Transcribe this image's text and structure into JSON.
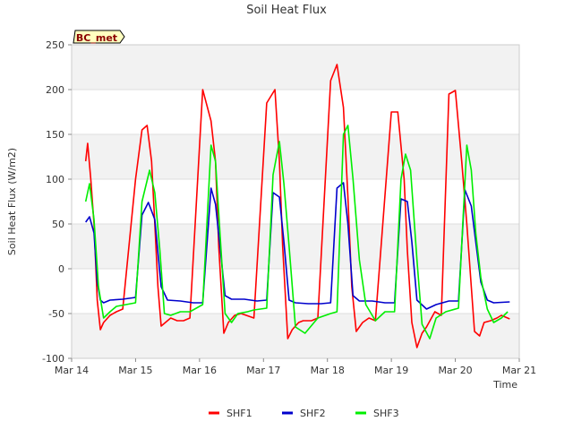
{
  "chart_data": {
    "type": "line",
    "title": "Soil Heat Flux",
    "xlabel": "Time",
    "ylabel": "Soil Heat Flux (W/m2)",
    "badge": "BC_met",
    "ylim": [
      -100,
      250
    ],
    "yticks": [
      -100,
      -50,
      0,
      50,
      100,
      150,
      200,
      250
    ],
    "xlim": [
      0,
      7
    ],
    "xticks": [
      {
        "v": 0,
        "label": "Mar 14"
      },
      {
        "v": 1,
        "label": "Mar 15"
      },
      {
        "v": 2,
        "label": "Mar 16"
      },
      {
        "v": 3,
        "label": "Mar 17"
      },
      {
        "v": 4,
        "label": "Mar 18"
      },
      {
        "v": 5,
        "label": "Mar 19"
      },
      {
        "v": 6,
        "label": "Mar 20"
      },
      {
        "v": 7,
        "label": "Mar 21"
      }
    ],
    "grid": "horizontal bands",
    "legend_position": "bottom",
    "series": [
      {
        "name": "SHF1",
        "color": "#ff0000",
        "x": [
          0.22,
          0.25,
          0.3,
          0.35,
          0.4,
          0.45,
          0.5,
          0.6,
          0.7,
          0.8,
          1.0,
          1.1,
          1.18,
          1.25,
          1.3,
          1.35,
          1.4,
          1.5,
          1.55,
          1.65,
          1.75,
          1.85,
          2.05,
          2.18,
          2.25,
          2.3,
          2.38,
          2.45,
          2.55,
          2.65,
          2.85,
          3.05,
          3.18,
          3.25,
          3.3,
          3.38,
          3.45,
          3.55,
          3.62,
          3.75,
          3.85,
          4.05,
          4.15,
          4.25,
          4.32,
          4.38,
          4.45,
          4.55,
          4.65,
          4.75,
          5.0,
          5.1,
          5.2,
          5.25,
          5.32,
          5.4,
          5.48,
          5.55,
          5.68,
          5.78,
          5.9,
          6.0,
          6.1,
          6.18,
          6.25,
          6.3,
          6.38,
          6.45,
          6.55,
          6.65,
          6.72,
          6.85
        ],
        "y": [
          120,
          140,
          100,
          50,
          -35,
          -68,
          -60,
          -52,
          -48,
          -45,
          100,
          155,
          160,
          120,
          50,
          -20,
          -64,
          -58,
          -55,
          -58,
          -58,
          -55,
          200,
          165,
          120,
          25,
          -72,
          -60,
          -52,
          -50,
          -55,
          185,
          200,
          120,
          25,
          -78,
          -68,
          -60,
          -58,
          -58,
          -55,
          210,
          228,
          180,
          80,
          -20,
          -70,
          -60,
          -55,
          -58,
          175,
          175,
          100,
          20,
          -60,
          -88,
          -72,
          -65,
          -48,
          -52,
          195,
          199,
          120,
          50,
          -20,
          -70,
          -75,
          -60,
          -58,
          -55,
          -52,
          -56
        ]
      },
      {
        "name": "SHF2",
        "color": "#0000cc",
        "x": [
          0.22,
          0.28,
          0.35,
          0.4,
          0.45,
          0.5,
          0.6,
          0.8,
          1.0,
          1.1,
          1.2,
          1.3,
          1.4,
          1.5,
          1.7,
          1.9,
          2.05,
          2.18,
          2.25,
          2.32,
          2.4,
          2.5,
          2.7,
          2.9,
          3.05,
          3.15,
          3.25,
          3.32,
          3.4,
          3.5,
          3.7,
          3.9,
          4.05,
          4.15,
          4.25,
          4.32,
          4.4,
          4.5,
          4.7,
          4.9,
          5.05,
          5.15,
          5.25,
          5.32,
          5.4,
          5.55,
          5.7,
          5.9,
          6.05,
          6.15,
          6.25,
          6.32,
          6.4,
          6.5,
          6.6,
          6.85
        ],
        "y": [
          52,
          58,
          40,
          -15,
          -35,
          -38,
          -35,
          -34,
          -32,
          60,
          74,
          55,
          -20,
          -35,
          -36,
          -38,
          -38,
          90,
          72,
          25,
          -30,
          -34,
          -34,
          -36,
          -35,
          85,
          80,
          30,
          -35,
          -38,
          -39,
          -39,
          -38,
          90,
          96,
          50,
          -30,
          -36,
          -36,
          -38,
          -38,
          78,
          75,
          30,
          -35,
          -45,
          -40,
          -36,
          -36,
          88,
          70,
          30,
          -15,
          -35,
          -38,
          -37
        ]
      },
      {
        "name": "SHF3",
        "color": "#00ee00",
        "x": [
          0.22,
          0.28,
          0.35,
          0.42,
          0.5,
          0.6,
          0.7,
          0.85,
          1.0,
          1.1,
          1.22,
          1.3,
          1.38,
          1.45,
          1.55,
          1.7,
          1.85,
          2.05,
          2.18,
          2.25,
          2.32,
          2.4,
          2.5,
          2.6,
          2.75,
          2.85,
          3.05,
          3.15,
          3.25,
          3.32,
          3.4,
          3.5,
          3.65,
          3.85,
          4.05,
          4.15,
          4.25,
          4.32,
          4.4,
          4.5,
          4.6,
          4.75,
          4.9,
          5.05,
          5.15,
          5.22,
          5.3,
          5.4,
          5.48,
          5.6,
          5.7,
          5.85,
          6.05,
          6.18,
          6.25,
          6.32,
          6.4,
          6.5,
          6.6,
          6.72,
          6.82
        ],
        "y": [
          75,
          95,
          55,
          -20,
          -55,
          -48,
          -42,
          -40,
          -38,
          75,
          110,
          85,
          20,
          -50,
          -52,
          -48,
          -48,
          -40,
          138,
          120,
          40,
          -50,
          -60,
          -50,
          -48,
          -46,
          -44,
          105,
          142,
          95,
          25,
          -65,
          -72,
          -55,
          -50,
          -48,
          150,
          160,
          100,
          10,
          -40,
          -58,
          -48,
          -48,
          100,
          128,
          110,
          10,
          -62,
          -78,
          -55,
          -48,
          -44,
          138,
          110,
          40,
          -10,
          -45,
          -60,
          -55,
          -48
        ]
      }
    ]
  }
}
